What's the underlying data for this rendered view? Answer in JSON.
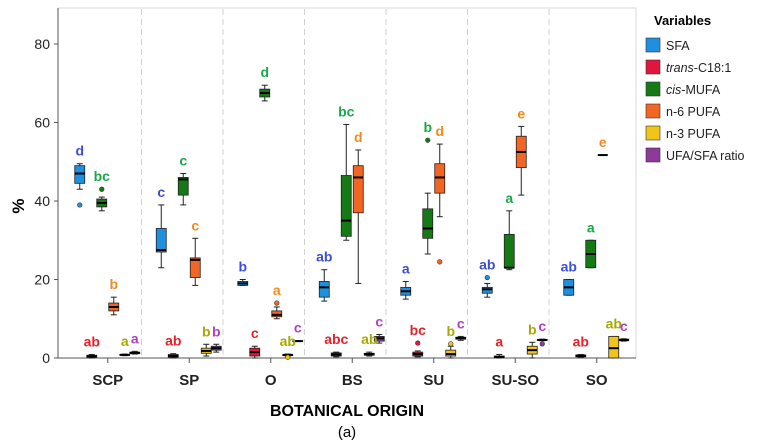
{
  "chart_data": {
    "type": "box",
    "xlabel": "BOTANICAL ORIGIN",
    "ylabel": "%",
    "caption": "(a)",
    "ylim": [
      0,
      86
    ],
    "yticks": [
      0,
      20,
      40,
      60,
      80
    ],
    "categories": [
      "SCP",
      "SP",
      "O",
      "BS",
      "SU",
      "SU-SO",
      "SO"
    ],
    "legend": {
      "title": "Variables",
      "position": "right",
      "items": [
        {
          "italic": "",
          "text": "SFA"
        },
        {
          "italic": "trans",
          "text": "-C18:1"
        },
        {
          "italic": "cis",
          "text": "-MUFA"
        },
        {
          "italic": "",
          "text": "n-6 PUFA"
        },
        {
          "italic": "",
          "text": "n-3 PUFA"
        },
        {
          "italic": "",
          "text": "UFA/SFA ratio"
        }
      ]
    },
    "series": [
      {
        "name": "SFA",
        "color": "#1e90e0",
        "letter_color": "#3b4fd0",
        "boxes": [
          {
            "min": 43,
            "q1": 44.5,
            "med": 47,
            "q3": 49,
            "max": 49.5,
            "outliers": [
              39
            ],
            "letter": "d"
          },
          {
            "min": 23,
            "q1": 27,
            "med": 27.5,
            "q3": 33,
            "max": 39,
            "outliers": [],
            "letter": "c"
          },
          {
            "min": 18.5,
            "q1": 18.5,
            "med": 19,
            "q3": 19.5,
            "max": 20,
            "outliers": [],
            "letter": "b"
          },
          {
            "min": 14.5,
            "q1": 15.5,
            "med": 18,
            "q3": 19.5,
            "max": 22.5,
            "outliers": [],
            "letter": "ab"
          },
          {
            "min": 15,
            "q1": 16,
            "med": 17,
            "q3": 18,
            "max": 19.5,
            "outliers": [],
            "letter": "a"
          },
          {
            "min": 15.5,
            "q1": 16.5,
            "med": 17.5,
            "q3": 18,
            "max": 19,
            "outliers": [
              20.5
            ],
            "letter": "ab"
          },
          {
            "min": 16,
            "q1": 16,
            "med": 18,
            "q3": 20,
            "max": 20,
            "outliers": [],
            "letter": "ab"
          }
        ]
      },
      {
        "name": "trans-C18:1",
        "color": "#e0163c",
        "letter_color": "#e8202a",
        "boxes": [
          {
            "min": 0,
            "q1": 0.2,
            "med": 0.4,
            "q3": 0.7,
            "max": 0.9,
            "outliers": [],
            "letter": "ab"
          },
          {
            "min": 0,
            "q1": 0.2,
            "med": 0.5,
            "q3": 0.9,
            "max": 1.1,
            "outliers": [],
            "letter": "ab"
          },
          {
            "min": 0,
            "q1": 0.5,
            "med": 1.5,
            "q3": 2.5,
            "max": 3,
            "outliers": [],
            "letter": "c"
          },
          {
            "min": 0.3,
            "q1": 0.5,
            "med": 0.9,
            "q3": 1.3,
            "max": 1.5,
            "outliers": [],
            "letter": "abc"
          },
          {
            "min": 0.3,
            "q1": 0.5,
            "med": 1,
            "q3": 1.5,
            "max": 1.8,
            "outliers": [
              3.8
            ],
            "letter": "bc"
          },
          {
            "min": 0,
            "q1": 0.1,
            "med": 0.3,
            "q3": 0.5,
            "max": 0.9,
            "outliers": [],
            "letter": "a"
          },
          {
            "min": 0.2,
            "q1": 0.3,
            "med": 0.5,
            "q3": 0.8,
            "max": 0.9,
            "outliers": [],
            "letter": "ab"
          }
        ]
      },
      {
        "name": "cis-MUFA",
        "color": "#157a15",
        "letter_color": "#1aa84a",
        "boxes": [
          {
            "min": 37.5,
            "q1": 38.5,
            "med": 39.5,
            "q3": 40.5,
            "max": 41,
            "outliers": [
              43
            ],
            "letter": "bc"
          },
          {
            "min": 39,
            "q1": 41.5,
            "med": 45.5,
            "q3": 46,
            "max": 47,
            "outliers": [],
            "letter": "c"
          },
          {
            "min": 65.5,
            "q1": 66.5,
            "med": 67.5,
            "q3": 68.5,
            "max": 69.5,
            "outliers": [],
            "letter": "d"
          },
          {
            "min": 30,
            "q1": 31,
            "med": 35,
            "q3": 46.5,
            "max": 59.5,
            "outliers": [],
            "letter": "bc"
          },
          {
            "min": 26.5,
            "q1": 30.5,
            "med": 33,
            "q3": 38,
            "max": 42,
            "outliers": [
              55.5
            ],
            "letter": "b"
          },
          {
            "min": 22.5,
            "q1": 23,
            "med": 23,
            "q3": 31.5,
            "max": 37.5,
            "outliers": [],
            "letter": "a"
          },
          {
            "min": 23,
            "q1": 23,
            "med": 26.5,
            "q3": 30,
            "max": 30,
            "outliers": [],
            "letter": "a"
          }
        ]
      },
      {
        "name": "n-6 PUFA",
        "color": "#f26522",
        "letter_color": "#f28a1e",
        "boxes": [
          {
            "min": 11,
            "q1": 12,
            "med": 13,
            "q3": 14,
            "max": 15.5,
            "outliers": [],
            "letter": "b"
          },
          {
            "min": 18.5,
            "q1": 20.5,
            "med": 25,
            "q3": 25.5,
            "max": 30.5,
            "outliers": [],
            "letter": "c"
          },
          {
            "min": 10,
            "q1": 10.5,
            "med": 11,
            "q3": 12,
            "max": 13,
            "outliers": [
              14
            ],
            "letter": "a"
          },
          {
            "min": 19,
            "q1": 37,
            "med": 46,
            "q3": 49,
            "max": 53,
            "outliers": [],
            "letter": "d"
          },
          {
            "min": 36,
            "q1": 42,
            "med": 46,
            "q3": 49.5,
            "max": 54.5,
            "outliers": [
              24.5
            ],
            "letter": "d"
          },
          {
            "min": 41.5,
            "q1": 48.5,
            "med": 52.5,
            "q3": 56.5,
            "max": 59,
            "outliers": [],
            "letter": "e"
          },
          {
            "min": 51.7,
            "q1": 51.7,
            "med": 51.7,
            "q3": 51.7,
            "max": 51.7,
            "outliers": [],
            "letter": "e"
          }
        ]
      },
      {
        "name": "n-3 PUFA",
        "color": "#f0c419",
        "letter_color": "#a8a800",
        "boxes": [
          {
            "min": 0.6,
            "q1": 0.7,
            "med": 0.8,
            "q3": 0.9,
            "max": 1,
            "outliers": [],
            "letter": "a"
          },
          {
            "min": 0.5,
            "q1": 1.2,
            "med": 1.8,
            "q3": 2.5,
            "max": 3.5,
            "outliers": [],
            "letter": "b"
          },
          {
            "min": 0.5,
            "q1": 0.6,
            "med": 0.8,
            "q3": 0.9,
            "max": 1,
            "outliers": [
              0.2
            ],
            "letter": "ab"
          },
          {
            "min": 0.5,
            "q1": 0.7,
            "med": 1,
            "q3": 1.2,
            "max": 1.5,
            "outliers": [],
            "letter": "ab"
          },
          {
            "min": 0,
            "q1": 0.5,
            "med": 1,
            "q3": 2,
            "max": 3,
            "outliers": [
              3.6
            ],
            "letter": "b"
          },
          {
            "min": 0,
            "q1": 1,
            "med": 2,
            "q3": 3,
            "max": 4,
            "outliers": [],
            "letter": "b"
          },
          {
            "min": 0,
            "q1": 0,
            "med": 2.5,
            "q3": 5.5,
            "max": 5.5,
            "outliers": [],
            "letter": "ab"
          }
        ]
      },
      {
        "name": "UFA/SFA ratio",
        "color": "#8e3a9a",
        "letter_color": "#b040c0",
        "boxes": [
          {
            "min": 1,
            "q1": 1.1,
            "med": 1.3,
            "q3": 1.5,
            "max": 1.7,
            "outliers": [],
            "letter": "a"
          },
          {
            "min": 1.5,
            "q1": 2,
            "med": 2.5,
            "q3": 3,
            "max": 3.5,
            "outliers": [],
            "letter": "b"
          },
          {
            "min": 4.2,
            "q1": 4.2,
            "med": 4.3,
            "q3": 4.4,
            "max": 4.4,
            "outliers": [],
            "letter": "c"
          },
          {
            "min": 3.8,
            "q1": 4.3,
            "med": 5,
            "q3": 5.5,
            "max": 6,
            "outliers": [],
            "letter": "c"
          },
          {
            "min": 4.5,
            "q1": 4.8,
            "med": 5,
            "q3": 5.3,
            "max": 5.5,
            "outliers": [],
            "letter": "c"
          },
          {
            "min": 4.4,
            "q1": 4.5,
            "med": 4.6,
            "q3": 4.7,
            "max": 4.8,
            "outliers": [
              3.6
            ],
            "letter": "c"
          },
          {
            "min": 4.3,
            "q1": 4.4,
            "med": 4.6,
            "q3": 4.8,
            "max": 4.9,
            "outliers": [],
            "letter": "c"
          }
        ]
      }
    ]
  }
}
